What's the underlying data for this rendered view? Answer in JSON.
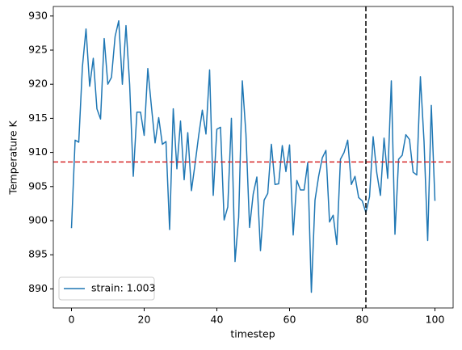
{
  "chart_data": {
    "type": "line",
    "x_label": "timestep",
    "y_label": "Temperature K",
    "x": [
      0,
      1,
      2,
      3,
      4,
      5,
      6,
      7,
      8,
      9,
      10,
      11,
      12,
      13,
      14,
      15,
      16,
      17,
      18,
      19,
      20,
      21,
      22,
      23,
      24,
      25,
      26,
      27,
      28,
      29,
      30,
      31,
      32,
      33,
      34,
      35,
      36,
      37,
      38,
      39,
      40,
      41,
      42,
      43,
      44,
      45,
      46,
      47,
      48,
      49,
      50,
      51,
      52,
      53,
      54,
      55,
      56,
      57,
      58,
      59,
      60,
      61,
      62,
      63,
      64,
      65,
      66,
      67,
      68,
      69,
      70,
      71,
      72,
      73,
      74,
      75,
      76,
      77,
      78,
      79,
      80,
      81,
      82,
      83,
      84,
      85,
      86,
      87,
      88,
      89,
      90,
      91,
      92,
      93,
      94,
      95,
      96,
      97,
      98,
      99,
      100
    ],
    "series": [
      {
        "name": "strain: 1.003",
        "color": "#1f77b4",
        "values": [
          898.9,
          911.8,
          911.5,
          922.5,
          928.1,
          919.7,
          923.8,
          916.4,
          914.9,
          926.7,
          920.0,
          921.0,
          927.0,
          929.3,
          920.0,
          928.6,
          920.0,
          906.5,
          915.9,
          915.9,
          912.5,
          922.3,
          916.7,
          911.4,
          915.1,
          911.2,
          911.6,
          898.7,
          916.4,
          907.6,
          914.6,
          906.0,
          912.9,
          904.4,
          908.3,
          912.5,
          916.2,
          912.7,
          922.1,
          903.7,
          913.4,
          913.7,
          900.1,
          902.0,
          915.0,
          894.0,
          900.5,
          920.5,
          912.7,
          899.0,
          903.9,
          906.4,
          895.6,
          903.0,
          904.0,
          911.2,
          905.3,
          905.4,
          911.0,
          907.2,
          911.1,
          897.9,
          905.9,
          904.5,
          904.5,
          908.5,
          889.5,
          903.0,
          906.5,
          909.2,
          910.3,
          899.8,
          900.8,
          896.5,
          909.0,
          910.0,
          911.8,
          905.3,
          906.5,
          903.4,
          902.9,
          901.2,
          903.5,
          912.3,
          907.0,
          903.7,
          912.1,
          906.2,
          920.5,
          898.0,
          909.0,
          909.6,
          912.6,
          911.9,
          907.1,
          906.7,
          921.1,
          911.6,
          897.1,
          916.9,
          902.9
        ]
      }
    ],
    "hline": {
      "value": 908.6,
      "color": "#d62728"
    },
    "vline": {
      "value": 81,
      "color": "#000000"
    },
    "xlim": [
      -5,
      105
    ],
    "xticks": [
      0,
      20,
      40,
      60,
      80,
      100
    ],
    "ylim": [
      887.2,
      931.4
    ],
    "yticks": [
      890,
      895,
      900,
      905,
      910,
      915,
      920,
      925,
      930
    ],
    "legend": "lower left"
  }
}
